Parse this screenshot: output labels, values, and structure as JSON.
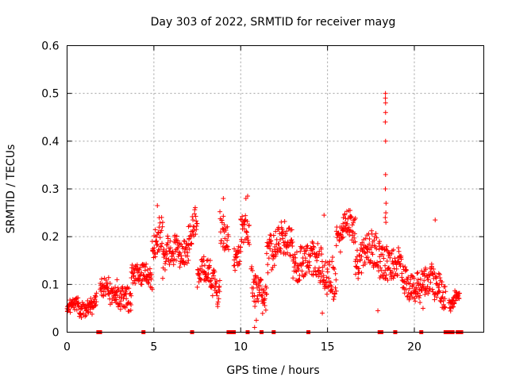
{
  "chart_data": {
    "type": "scatter",
    "title": "Day 303 of 2022, SRMTID for receiver mayg",
    "xlabel": "GPS time / hours",
    "ylabel": "SRMTID / TECUs",
    "xlim": [
      0,
      24
    ],
    "ylim": [
      0,
      0.6
    ],
    "x_ticks": [
      "0",
      "5",
      "10",
      "15",
      "20"
    ],
    "x_tick_values": [
      0,
      5,
      10,
      15,
      20
    ],
    "y_ticks": [
      "0",
      "0.1",
      "0.2",
      "0.3",
      "0.4",
      "0.5",
      "0.6"
    ],
    "y_tick_values": [
      0,
      0.1,
      0.2,
      0.3,
      0.4,
      0.5,
      0.6
    ],
    "grid": true,
    "marker": "+",
    "color": "#ff0000",
    "series": [
      {
        "name": "SRMTID",
        "segments": [
          {
            "t0": 0.0,
            "t1": 1.7,
            "base": 0.05,
            "spread": 0.02
          },
          {
            "t0": 1.9,
            "t1": 2.8,
            "base": 0.1,
            "spread": 0.03
          },
          {
            "t0": 2.8,
            "t1": 3.7,
            "base": 0.09,
            "spread": 0.04
          },
          {
            "t0": 3.7,
            "t1": 4.9,
            "base": 0.12,
            "spread": 0.03
          },
          {
            "t0": 4.9,
            "t1": 5.5,
            "base": 0.18,
            "spread": 0.05
          },
          {
            "t0": 5.5,
            "t1": 7.0,
            "base": 0.14,
            "spread": 0.04
          },
          {
            "t0": 7.0,
            "t1": 7.5,
            "base": 0.2,
            "spread": 0.04
          },
          {
            "t0": 7.5,
            "t1": 8.8,
            "base": 0.12,
            "spread": 0.04
          },
          {
            "t0": 8.8,
            "t1": 9.3,
            "base": 0.22,
            "spread": 0.05
          },
          {
            "t0": 9.6,
            "t1": 10.0,
            "base": 0.15,
            "spread": 0.04
          },
          {
            "t0": 10.0,
            "t1": 10.5,
            "base": 0.22,
            "spread": 0.05
          },
          {
            "t0": 10.6,
            "t1": 11.5,
            "base": 0.11,
            "spread": 0.05
          },
          {
            "t0": 11.5,
            "t1": 13.0,
            "base": 0.15,
            "spread": 0.05
          },
          {
            "t0": 13.0,
            "t1": 14.5,
            "base": 0.13,
            "spread": 0.05
          },
          {
            "t0": 14.5,
            "t1": 15.5,
            "base": 0.14,
            "spread": 0.06
          },
          {
            "t0": 15.5,
            "t1": 16.6,
            "base": 0.2,
            "spread": 0.04
          },
          {
            "t0": 16.6,
            "t1": 18.0,
            "base": 0.13,
            "spread": 0.05
          },
          {
            "t0": 18.0,
            "t1": 18.8,
            "base": 0.15,
            "spread": 0.05
          },
          {
            "t0": 18.8,
            "t1": 20.6,
            "base": 0.13,
            "spread": 0.04
          },
          {
            "t0": 20.6,
            "t1": 21.8,
            "base": 0.11,
            "spread": 0.04
          },
          {
            "t0": 22.0,
            "t1": 22.6,
            "base": 0.06,
            "spread": 0.02
          }
        ],
        "spike": {
          "x": 18.35,
          "values": [
            0.5,
            0.49,
            0.48,
            0.46,
            0.44,
            0.4,
            0.33,
            0.3,
            0.27,
            0.25,
            0.24,
            0.23
          ]
        },
        "extra_points": [
          [
            5.2,
            0.265
          ],
          [
            9.0,
            0.28
          ],
          [
            10.4,
            0.285
          ],
          [
            10.3,
            0.28
          ],
          [
            14.8,
            0.245
          ],
          [
            16.3,
            0.255
          ],
          [
            21.2,
            0.235
          ],
          [
            10.8,
            0.01
          ],
          [
            10.9,
            0.025
          ],
          [
            14.7,
            0.04
          ],
          [
            17.9,
            0.045
          ],
          [
            20.5,
            0.05
          ]
        ]
      }
    ],
    "gap_markers_x": [
      1.8,
      1.9,
      4.4,
      7.2,
      9.3,
      9.4,
      9.5,
      9.6,
      10.4,
      11.2,
      11.9,
      13.9,
      18.0,
      18.1,
      18.9,
      20.4,
      21.8,
      22.0,
      22.2,
      22.5,
      22.6,
      22.7
    ]
  }
}
